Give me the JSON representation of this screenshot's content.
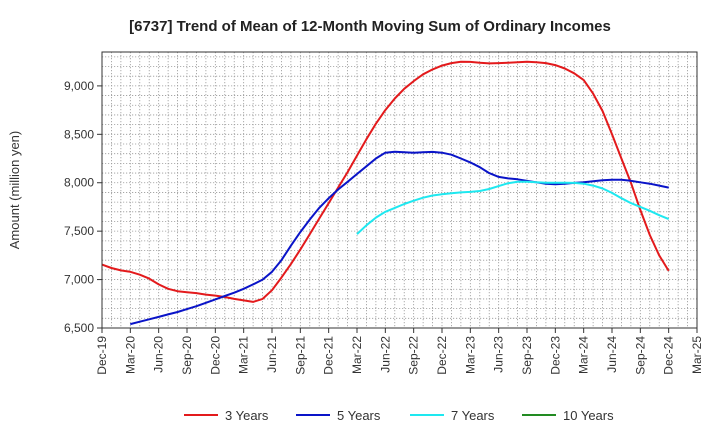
{
  "chart_data": {
    "type": "line",
    "title": "[6737]  Trend of Mean of 12-Month Moving Sum of Ordinary Incomes",
    "xlabel": "",
    "ylabel": "Amount (million yen)",
    "ylim": [
      6500,
      9350
    ],
    "yticks": [
      6500,
      7000,
      7500,
      8000,
      8500,
      9000
    ],
    "ytick_labels": [
      "6,500",
      "7,000",
      "7,500",
      "8,000",
      "8,500",
      "9,000"
    ],
    "x_start": "Dec-19",
    "x_end": "Mar-25",
    "months_total": 63,
    "xtick_labels": [
      "Dec-19",
      "Mar-20",
      "Jun-20",
      "Sep-20",
      "Dec-20",
      "Mar-21",
      "Jun-21",
      "Sep-21",
      "Dec-21",
      "Mar-22",
      "Jun-22",
      "Sep-22",
      "Dec-22",
      "Mar-23",
      "Jun-23",
      "Sep-23",
      "Dec-23",
      "Mar-24",
      "Jun-24",
      "Sep-24",
      "Dec-24",
      "Mar-25"
    ],
    "grid": true,
    "legend_position": "bottom",
    "series": [
      {
        "name": "3 Years",
        "color": "#e31a1c",
        "points": [
          [
            0,
            7155
          ],
          [
            1,
            7120
          ],
          [
            2,
            7095
          ],
          [
            3,
            7080
          ],
          [
            4,
            7050
          ],
          [
            5,
            7010
          ],
          [
            6,
            6950
          ],
          [
            7,
            6905
          ],
          [
            8,
            6880
          ],
          [
            9,
            6870
          ],
          [
            10,
            6860
          ],
          [
            11,
            6845
          ],
          [
            12,
            6835
          ],
          [
            13,
            6820
          ],
          [
            14,
            6800
          ],
          [
            15,
            6785
          ],
          [
            16,
            6770
          ],
          [
            17,
            6800
          ],
          [
            18,
            6890
          ],
          [
            19,
            7020
          ],
          [
            20,
            7160
          ],
          [
            21,
            7310
          ],
          [
            22,
            7470
          ],
          [
            23,
            7630
          ],
          [
            24,
            7790
          ],
          [
            25,
            7950
          ],
          [
            26,
            8110
          ],
          [
            27,
            8280
          ],
          [
            28,
            8450
          ],
          [
            29,
            8610
          ],
          [
            30,
            8750
          ],
          [
            31,
            8870
          ],
          [
            32,
            8970
          ],
          [
            33,
            9050
          ],
          [
            34,
            9120
          ],
          [
            35,
            9170
          ],
          [
            36,
            9210
          ],
          [
            37,
            9235
          ],
          [
            38,
            9250
          ],
          [
            39,
            9248
          ],
          [
            40,
            9238
          ],
          [
            41,
            9232
          ],
          [
            42,
            9235
          ],
          [
            43,
            9240
          ],
          [
            44,
            9245
          ],
          [
            45,
            9250
          ],
          [
            46,
            9245
          ],
          [
            47,
            9235
          ],
          [
            48,
            9215
          ],
          [
            49,
            9180
          ],
          [
            50,
            9130
          ],
          [
            51,
            9060
          ],
          [
            52,
            8920
          ],
          [
            53,
            8740
          ],
          [
            54,
            8500
          ],
          [
            55,
            8250
          ],
          [
            56,
            8000
          ],
          [
            57,
            7720
          ],
          [
            58,
            7460
          ],
          [
            59,
            7250
          ],
          [
            60,
            7090
          ]
        ]
      },
      {
        "name": "5 Years",
        "color": "#0a14c8",
        "points": [
          [
            3,
            6540
          ],
          [
            4,
            6565
          ],
          [
            5,
            6590
          ],
          [
            6,
            6615
          ],
          [
            7,
            6640
          ],
          [
            8,
            6665
          ],
          [
            9,
            6695
          ],
          [
            10,
            6725
          ],
          [
            11,
            6760
          ],
          [
            12,
            6795
          ],
          [
            13,
            6830
          ],
          [
            14,
            6865
          ],
          [
            15,
            6905
          ],
          [
            16,
            6950
          ],
          [
            17,
            7000
          ],
          [
            18,
            7080
          ],
          [
            19,
            7200
          ],
          [
            20,
            7350
          ],
          [
            21,
            7490
          ],
          [
            22,
            7620
          ],
          [
            23,
            7740
          ],
          [
            24,
            7840
          ],
          [
            25,
            7930
          ],
          [
            26,
            8010
          ],
          [
            27,
            8090
          ],
          [
            28,
            8170
          ],
          [
            29,
            8250
          ],
          [
            30,
            8310
          ],
          [
            31,
            8320
          ],
          [
            32,
            8315
          ],
          [
            33,
            8310
          ],
          [
            34,
            8315
          ],
          [
            35,
            8318
          ],
          [
            36,
            8310
          ],
          [
            37,
            8290
          ],
          [
            38,
            8250
          ],
          [
            39,
            8210
          ],
          [
            40,
            8160
          ],
          [
            41,
            8100
          ],
          [
            42,
            8060
          ],
          [
            43,
            8045
          ],
          [
            44,
            8035
          ],
          [
            45,
            8020
          ],
          [
            46,
            8005
          ],
          [
            47,
            7990
          ],
          [
            48,
            7985
          ],
          [
            49,
            7990
          ],
          [
            50,
            7998
          ],
          [
            51,
            8005
          ],
          [
            52,
            8015
          ],
          [
            53,
            8025
          ],
          [
            54,
            8030
          ],
          [
            55,
            8030
          ],
          [
            56,
            8020
          ],
          [
            57,
            8005
          ],
          [
            58,
            7990
          ],
          [
            59,
            7970
          ],
          [
            60,
            7950
          ]
        ]
      },
      {
        "name": "7 Years",
        "color": "#1ee8f0",
        "points": [
          [
            27,
            7470
          ],
          [
            28,
            7560
          ],
          [
            29,
            7640
          ],
          [
            30,
            7700
          ],
          [
            31,
            7740
          ],
          [
            32,
            7780
          ],
          [
            33,
            7815
          ],
          [
            34,
            7845
          ],
          [
            35,
            7868
          ],
          [
            36,
            7882
          ],
          [
            37,
            7892
          ],
          [
            38,
            7900
          ],
          [
            39,
            7905
          ],
          [
            40,
            7915
          ],
          [
            41,
            7935
          ],
          [
            42,
            7965
          ],
          [
            43,
            7995
          ],
          [
            44,
            8010
          ],
          [
            45,
            8010
          ],
          [
            46,
            8005
          ],
          [
            47,
            8000
          ],
          [
            48,
            8000
          ],
          [
            49,
            8000
          ],
          [
            50,
            7998
          ],
          [
            51,
            7990
          ],
          [
            52,
            7970
          ],
          [
            53,
            7940
          ],
          [
            54,
            7895
          ],
          [
            55,
            7840
          ],
          [
            56,
            7790
          ],
          [
            57,
            7750
          ],
          [
            58,
            7710
          ],
          [
            59,
            7665
          ],
          [
            60,
            7625
          ]
        ]
      },
      {
        "name": "10 Years",
        "color": "#228b22",
        "points": []
      }
    ]
  }
}
